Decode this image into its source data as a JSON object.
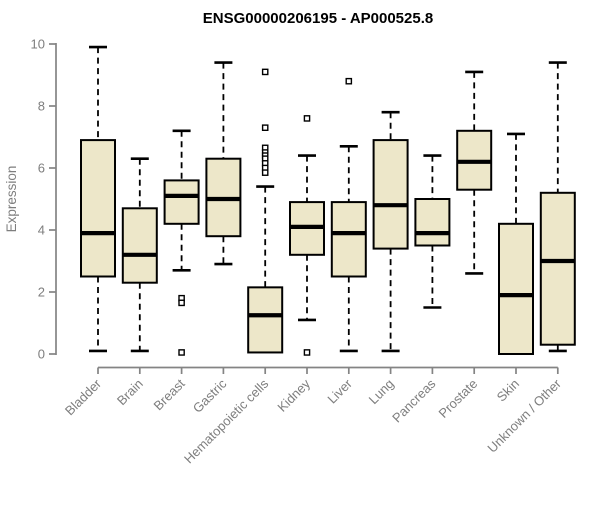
{
  "chart_data": {
    "type": "boxplot",
    "title": "ENSG00000206195 - AP000525.8",
    "xlabel": "",
    "ylabel": "Expression",
    "ylim": [
      0,
      10
    ],
    "yticks": [
      0,
      2,
      4,
      6,
      8,
      10
    ],
    "grid": false,
    "legend": null,
    "whisker_style": "dashed",
    "categories": [
      "Bladder",
      "Brain",
      "Breast",
      "Gastric",
      "Hematopoietic cells",
      "Kidney",
      "Liver",
      "Lung",
      "Pancreas",
      "Prostate",
      "Skin",
      "Unknown / Other"
    ],
    "series": [
      {
        "category": "Bladder",
        "whisker_low": 0.1,
        "q1": 2.5,
        "median": 3.9,
        "q3": 6.9,
        "whisker_high": 9.9,
        "outliers": []
      },
      {
        "category": "Brain",
        "whisker_low": 0.1,
        "q1": 2.3,
        "median": 3.2,
        "q3": 4.7,
        "whisker_high": 6.3,
        "outliers": []
      },
      {
        "category": "Breast",
        "whisker_low": 2.7,
        "q1": 4.2,
        "median": 5.1,
        "q3": 5.6,
        "whisker_high": 7.2,
        "outliers": [
          1.8,
          1.65,
          0.05
        ]
      },
      {
        "category": "Gastric",
        "whisker_low": 2.9,
        "q1": 3.8,
        "median": 5.0,
        "q3": 6.3,
        "whisker_high": 9.4,
        "outliers": []
      },
      {
        "category": "Hematopoietic cells",
        "whisker_low": 0.05,
        "q1": 0.05,
        "median": 1.25,
        "q3": 2.15,
        "whisker_high": 5.4,
        "outliers": [
          9.1,
          7.3,
          6.65,
          6.5,
          6.4,
          6.3,
          6.15,
          6.0,
          5.85
        ]
      },
      {
        "category": "Kidney",
        "whisker_low": 1.1,
        "q1": 3.2,
        "median": 4.1,
        "q3": 4.9,
        "whisker_high": 6.4,
        "outliers": [
          7.6,
          0.05
        ]
      },
      {
        "category": "Liver",
        "whisker_low": 0.1,
        "q1": 2.5,
        "median": 3.9,
        "q3": 4.9,
        "whisker_high": 6.7,
        "outliers": [
          8.8
        ]
      },
      {
        "category": "Lung",
        "whisker_low": 0.1,
        "q1": 3.4,
        "median": 4.8,
        "q3": 6.9,
        "whisker_high": 7.8,
        "outliers": []
      },
      {
        "category": "Pancreas",
        "whisker_low": 1.5,
        "q1": 3.5,
        "median": 3.9,
        "q3": 5.0,
        "whisker_high": 6.4,
        "outliers": []
      },
      {
        "category": "Prostate",
        "whisker_low": 2.6,
        "q1": 5.3,
        "median": 6.2,
        "q3": 7.2,
        "whisker_high": 9.1,
        "outliers": []
      },
      {
        "category": "Skin",
        "whisker_low": 0.0,
        "q1": 0.0,
        "median": 1.9,
        "q3": 4.2,
        "whisker_high": 7.1,
        "outliers": []
      },
      {
        "category": "Unknown / Other",
        "whisker_low": 0.1,
        "q1": 0.3,
        "median": 3.0,
        "q3": 5.2,
        "whisker_high": 9.4,
        "outliers": []
      }
    ]
  },
  "colors": {
    "background": "#FFFFFF",
    "box_fill": "#EDE7C9",
    "box_border": "#000000",
    "median": "#000000",
    "whisker": "#000000",
    "outlier": "#000000",
    "axis": "#848484",
    "tick_label": "#7E7E7E",
    "title": "#000000"
  }
}
